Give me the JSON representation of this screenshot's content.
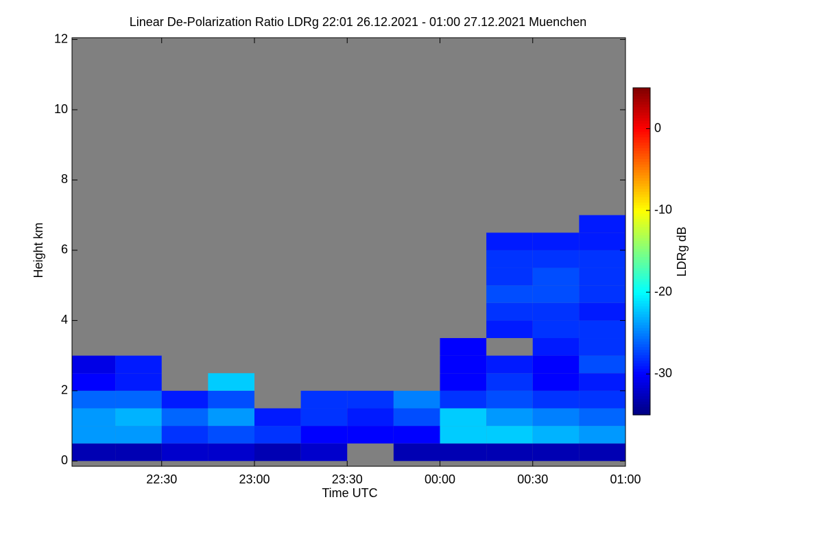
{
  "chart_data": {
    "type": "heatmap",
    "title": "Linear De-Polarization Ratio LDRg   22:01 26.12.2021 - 01:00 27.12.2021 Muenchen",
    "xlabel": "Time UTC",
    "ylabel": "Height km",
    "xlim": [
      22.0167,
      25.0
    ],
    "xticks": [
      {
        "value": 22.5,
        "label": "22:30"
      },
      {
        "value": 23.0,
        "label": "23:00"
      },
      {
        "value": 23.5,
        "label": "23:30"
      },
      {
        "value": 24.0,
        "label": "00:00"
      },
      {
        "value": 24.5,
        "label": "00:30"
      },
      {
        "value": 25.0,
        "label": "01:00"
      }
    ],
    "ylim": [
      -0.15,
      12.05
    ],
    "yticks": [
      0,
      2,
      4,
      6,
      8,
      10,
      12
    ],
    "x": [
      22.125,
      22.375,
      22.625,
      22.875,
      23.125,
      23.375,
      23.625,
      23.875,
      24.125,
      24.375,
      24.625,
      24.875
    ],
    "y": [
      0.25,
      0.75,
      1.25,
      1.75,
      2.25,
      2.75,
      3.25,
      3.75,
      4.25,
      4.75,
      5.25,
      5.75,
      6.25,
      6.75
    ],
    "z": [
      [
        -33,
        -33,
        -32,
        -32,
        -33,
        -32,
        null,
        -33,
        -33,
        -33,
        -33,
        -33
      ],
      [
        -24,
        -24,
        -28,
        -27,
        -28,
        -30,
        -30,
        -30,
        -22,
        -22,
        -23,
        -24
      ],
      [
        -24,
        -23,
        -26,
        -24,
        -29,
        -28,
        -29,
        -27,
        -22,
        -24,
        -25,
        -26
      ],
      [
        -26,
        -26,
        -29,
        -27,
        null,
        -28,
        -28,
        -25,
        -28,
        -27,
        -28,
        -28
      ],
      [
        -30,
        -29,
        null,
        -22,
        null,
        null,
        null,
        null,
        -30,
        -28,
        -30,
        -29
      ],
      [
        -31,
        -29,
        null,
        null,
        null,
        null,
        null,
        null,
        -30,
        -29,
        -30,
        -27
      ],
      [
        null,
        null,
        null,
        null,
        null,
        null,
        null,
        null,
        -30,
        null,
        -29,
        -28
      ],
      [
        null,
        null,
        null,
        null,
        null,
        null,
        null,
        null,
        null,
        -29,
        -28,
        -28
      ],
      [
        null,
        null,
        null,
        null,
        null,
        null,
        null,
        null,
        null,
        -28,
        -28,
        -29
      ],
      [
        null,
        null,
        null,
        null,
        null,
        null,
        null,
        null,
        null,
        -27,
        -27,
        -28
      ],
      [
        null,
        null,
        null,
        null,
        null,
        null,
        null,
        null,
        null,
        -28,
        -27,
        -28
      ],
      [
        null,
        null,
        null,
        null,
        null,
        null,
        null,
        null,
        null,
        -28,
        -28,
        -28
      ],
      [
        null,
        null,
        null,
        null,
        null,
        null,
        null,
        null,
        null,
        -29,
        -29,
        -29
      ],
      [
        null,
        null,
        null,
        null,
        null,
        null,
        null,
        null,
        null,
        null,
        null,
        -29
      ]
    ],
    "no_data_color": "#808080",
    "colormap": "jet",
    "colorbar": {
      "label": "LDRg dB",
      "lim": [
        -35,
        5
      ],
      "ticks": [
        0,
        -10,
        -20,
        -30
      ]
    }
  }
}
